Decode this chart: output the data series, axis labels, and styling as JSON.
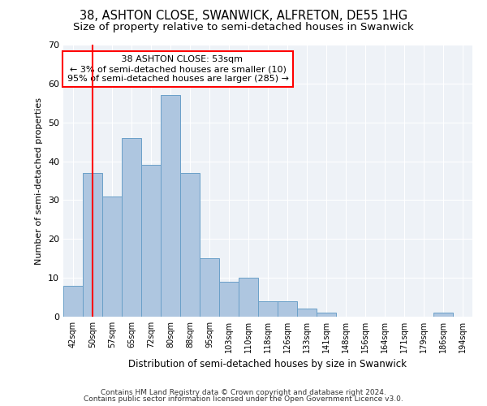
{
  "title1": "38, ASHTON CLOSE, SWANWICK, ALFRETON, DE55 1HG",
  "title2": "Size of property relative to semi-detached houses in Swanwick",
  "xlabel": "Distribution of semi-detached houses by size in Swanwick",
  "ylabel": "Number of semi-detached properties",
  "categories": [
    "42sqm",
    "50sqm",
    "57sqm",
    "65sqm",
    "72sqm",
    "80sqm",
    "88sqm",
    "95sqm",
    "103sqm",
    "110sqm",
    "118sqm",
    "126sqm",
    "133sqm",
    "141sqm",
    "148sqm",
    "156sqm",
    "164sqm",
    "171sqm",
    "179sqm",
    "186sqm",
    "194sqm"
  ],
  "values": [
    8,
    37,
    31,
    46,
    39,
    57,
    37,
    15,
    9,
    10,
    4,
    4,
    2,
    1,
    0,
    0,
    0,
    0,
    0,
    1,
    0
  ],
  "bar_color": "#aec6e0",
  "bar_edge_color": "#6aa0c8",
  "vline_x_idx": 1,
  "vline_color": "red",
  "annotation_text": "   38 ASHTON CLOSE: 53sqm\n← 3% of semi-detached houses are smaller (10)\n95% of semi-detached houses are larger (285) →",
  "ylim": [
    0,
    70
  ],
  "yticks": [
    0,
    10,
    20,
    30,
    40,
    50,
    60,
    70
  ],
  "footer1": "Contains HM Land Registry data © Crown copyright and database right 2024.",
  "footer2": "Contains public sector information licensed under the Open Government Licence v3.0.",
  "bg_color": "#eef2f7",
  "title1_fontsize": 10.5,
  "title2_fontsize": 9.5,
  "grid_color": "#ffffff"
}
